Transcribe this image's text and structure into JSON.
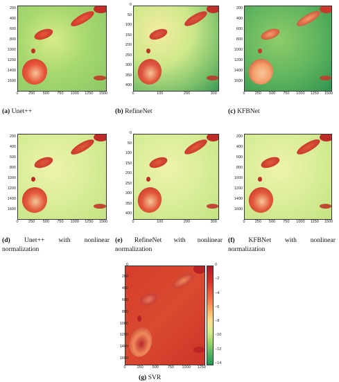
{
  "panels": [
    {
      "id": "a",
      "label": "(a)",
      "title": "Unet++",
      "xticks": [
        "0",
        "250",
        "500",
        "750",
        "1000",
        "1250",
        "1500"
      ],
      "yticks": [
        "200",
        "400",
        "600",
        "800",
        "1000",
        "1200",
        "1400",
        "1600"
      ],
      "style": "green"
    },
    {
      "id": "b",
      "label": "(b)",
      "title": "RefineNet",
      "xticks": [
        "0",
        "100",
        "200",
        "300"
      ],
      "yticks": [
        "0",
        "50",
        "100",
        "150",
        "200",
        "250",
        "300",
        "350",
        "400"
      ],
      "style": "refine"
    },
    {
      "id": "c",
      "label": "(c)",
      "title": "KFBNet",
      "xticks": [
        "0",
        "250",
        "500",
        "750",
        "1000",
        "1250",
        "1500"
      ],
      "yticks": [
        "200",
        "400",
        "600",
        "800",
        "1000",
        "1200",
        "1400",
        "1600"
      ],
      "style": "dark"
    },
    {
      "id": "d",
      "label": "(d)",
      "title": "Unet++   with   nonlinear normalization",
      "xticks": [
        "0",
        "250",
        "500",
        "750",
        "1000",
        "1250",
        "1500"
      ],
      "yticks": [
        "200",
        "400",
        "600",
        "800",
        "1000",
        "1200",
        "1400",
        "1600"
      ],
      "style": "light"
    },
    {
      "id": "e",
      "label": "(e)",
      "title": "RefineNet  with  nonlinear normalization",
      "xticks": [
        "0",
        "100",
        "200",
        "300"
      ],
      "yticks": [
        "0",
        "50",
        "100",
        "150",
        "200",
        "250",
        "300",
        "350",
        "400"
      ],
      "style": "light"
    },
    {
      "id": "f",
      "label": "(f)",
      "title": "KFBNet    with    nonlinear normalization",
      "xticks": [
        "0",
        "250",
        "500",
        "750",
        "1000",
        "1250",
        "1500"
      ],
      "yticks": [
        "200",
        "400",
        "600",
        "800",
        "1000",
        "1200",
        "1400",
        "1600"
      ],
      "style": "light"
    },
    {
      "id": "g",
      "label": "(g)",
      "title": "SVR",
      "xticks": [
        "0",
        "250",
        "500",
        "750",
        "1000",
        "1250"
      ],
      "yticks": [
        "0",
        "200",
        "400",
        "600",
        "800",
        "1000",
        "1200",
        "1400",
        "1600"
      ],
      "style": "svr"
    }
  ],
  "colorbar": {
    "ticks": [
      "0",
      "−2",
      "−4",
      "−6",
      "−8",
      "−10",
      "−12",
      "−14"
    ]
  }
}
